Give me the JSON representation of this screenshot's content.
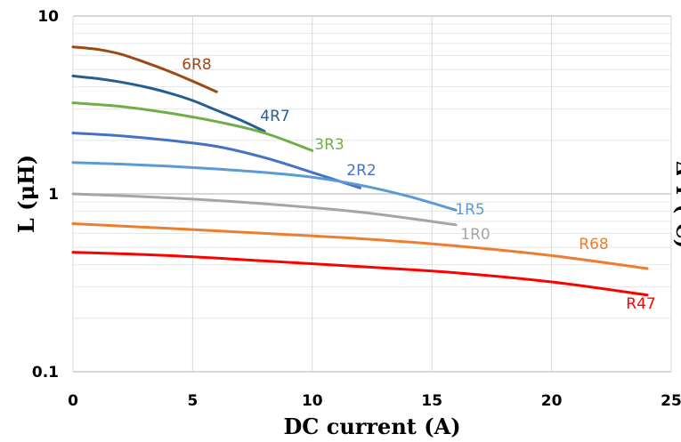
{
  "chart_data": {
    "type": "line",
    "xlabel": "DC current (A)",
    "ylabel": "L (μH)",
    "right_ylabel_fragment": "Δ T (°C)",
    "xlim": [
      0,
      25
    ],
    "ylim": [
      0.1,
      10
    ],
    "yscale": "log",
    "grid": true,
    "x_ticks": [
      "0",
      "5",
      "10",
      "15",
      "20",
      "25"
    ],
    "y_ticks": [
      "0.1",
      "1",
      "10"
    ],
    "series": [
      {
        "name": "6R8",
        "color": "#9c4a14",
        "x": [
          0,
          1,
          2,
          3,
          4,
          5,
          6
        ],
        "y": [
          6.7,
          6.5,
          6.1,
          5.5,
          4.9,
          4.3,
          3.75
        ]
      },
      {
        "name": "4R7",
        "color": "#255e91",
        "x": [
          0,
          1,
          2,
          3,
          4,
          5,
          6,
          7,
          8
        ],
        "y": [
          4.6,
          4.45,
          4.25,
          4.0,
          3.7,
          3.35,
          2.95,
          2.6,
          2.25
        ]
      },
      {
        "name": "3R3",
        "color": "#70ad47",
        "x": [
          0,
          2,
          4,
          6,
          8,
          10
        ],
        "y": [
          3.25,
          3.1,
          2.85,
          2.55,
          2.2,
          1.75
        ]
      },
      {
        "name": "2R2",
        "color": "#4472c4",
        "x": [
          0,
          2,
          4,
          6,
          8,
          10,
          12
        ],
        "y": [
          2.2,
          2.12,
          2.0,
          1.85,
          1.6,
          1.32,
          1.08
        ]
      },
      {
        "name": "1R5",
        "color": "#5b9bd5",
        "x": [
          0,
          2,
          4,
          6,
          8,
          10,
          12,
          14,
          16
        ],
        "y": [
          1.5,
          1.47,
          1.43,
          1.38,
          1.32,
          1.24,
          1.12,
          0.97,
          0.81
        ]
      },
      {
        "name": "1R0",
        "color": "#a5a5a5",
        "x": [
          0,
          4,
          8,
          12,
          16
        ],
        "y": [
          1.0,
          0.95,
          0.88,
          0.79,
          0.67
        ]
      },
      {
        "name": "R68",
        "color": "#ed7d31",
        "x": [
          0,
          4,
          8,
          12,
          16,
          20,
          24
        ],
        "y": [
          0.68,
          0.64,
          0.6,
          0.56,
          0.51,
          0.45,
          0.38
        ]
      },
      {
        "name": "R47",
        "color": "#ff0000",
        "x": [
          0,
          4,
          8,
          12,
          16,
          20,
          24
        ],
        "y": [
          0.47,
          0.45,
          0.42,
          0.39,
          0.36,
          0.32,
          0.27
        ]
      }
    ]
  }
}
